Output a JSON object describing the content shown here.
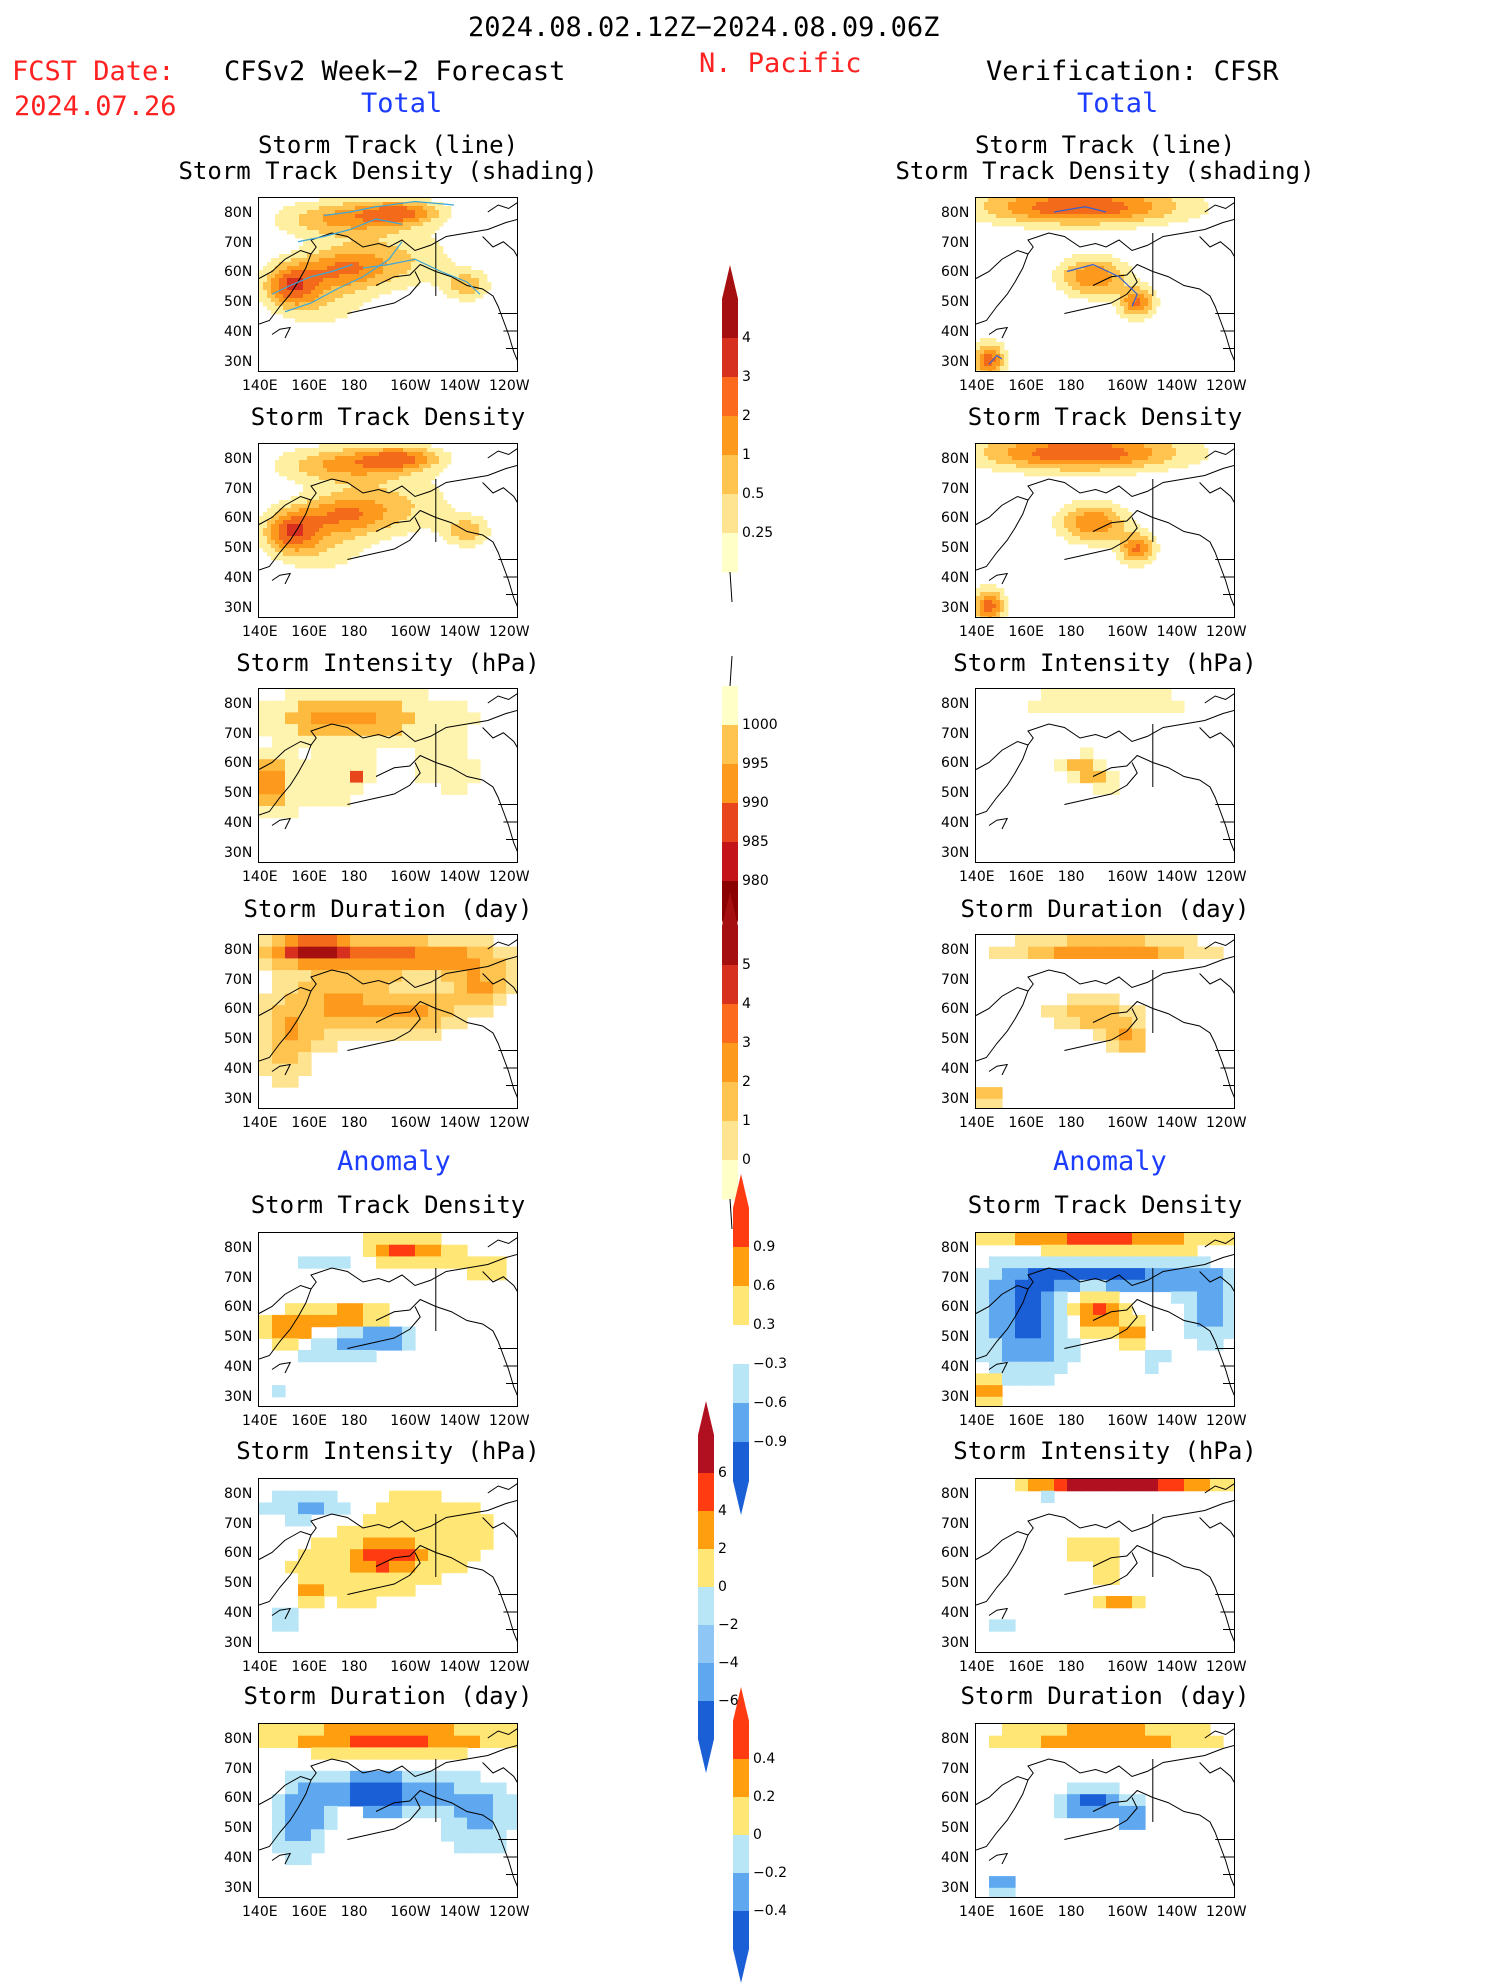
{
  "header": {
    "period": "2024.08.02.12Z−2024.08.09.06Z",
    "fcst_label": "FCST Date:",
    "fcst_date": "2024.07.26",
    "left_title": "CFSv2 Week−2 Forecast",
    "region": "N. Pacific",
    "right_title": "Verification: CFSR",
    "total_left": "Total",
    "total_right": "Total",
    "anomaly_left": "Anomaly",
    "anomaly_right": "Anomaly"
  },
  "panel_titles": {
    "track_line": "Storm Track (line)",
    "track_shading": "Storm Track Density (shading)",
    "density": "Storm Track Density",
    "intensity": "Storm Intensity (hPa)",
    "duration": "Storm Duration (day)"
  },
  "axes": {
    "lat_labels": [
      "80N",
      "70N",
      "60N",
      "50N",
      "40N",
      "30N"
    ],
    "lon_labels": [
      "140E",
      "160E",
      "180",
      "160W",
      "140W",
      "120W"
    ]
  },
  "colorbars": {
    "density": {
      "labels": [
        "4",
        "3",
        "2",
        "1",
        "0.5",
        "0.25"
      ],
      "colors": [
        "#a50f0f",
        "#d7301f",
        "#fc6a1e",
        "#fd9a1e",
        "#fec44f",
        "#fee391",
        "#ffffc8"
      ]
    },
    "intensity": {
      "labels": [
        "1000",
        "995",
        "990",
        "985",
        "980"
      ],
      "colors": [
        "#ffffc8",
        "#fec44f",
        "#fd9a1e",
        "#e8451c",
        "#c4141a",
        "#8b0000"
      ]
    },
    "duration": {
      "labels": [
        "5",
        "4",
        "3",
        "2",
        "1",
        "0"
      ],
      "colors": [
        "#a50f0f",
        "#d7301f",
        "#fc6a1e",
        "#fd9a1e",
        "#fec44f",
        "#fee391",
        "#ffffc8"
      ]
    },
    "anom_density": {
      "labels": [
        "0.9",
        "0.6",
        "0.3",
        "−0.3",
        "−0.6",
        "−0.9"
      ],
      "colors": [
        "#ff3b12",
        "#ff9f10",
        "#ffe675",
        "#ffffff",
        "#b9e6f7",
        "#5fa8f0",
        "#1a5fd6"
      ]
    },
    "anom_intensity": {
      "labels": [
        "6",
        "4",
        "2",
        "0",
        "−2",
        "−4",
        "−6"
      ],
      "colors": [
        "#b01020",
        "#ff3b12",
        "#ff9f10",
        "#ffe675",
        "#b9e6f7",
        "#8ec6f5",
        "#5fa8f0",
        "#1a5fd6"
      ]
    },
    "anom_duration": {
      "labels": [
        "0.4",
        "0.2",
        "0",
        "−0.2",
        "−0.4"
      ],
      "colors": [
        "#ff3b12",
        "#ff9f10",
        "#ffe675",
        "#b9e6f7",
        "#5fa8f0",
        "#1a5fd6"
      ]
    }
  },
  "chart_data": [
    {
      "type": "heatmap",
      "panel": "forecast-total-track",
      "title": "Storm Track (line) / Storm Track Density (shading)"
    },
    {
      "type": "heatmap",
      "panel": "verification-total-track",
      "title": "Storm Track (line) / Storm Track Density (shading)"
    },
    {
      "type": "heatmap",
      "panel": "forecast-total-density",
      "title": "Storm Track Density"
    },
    {
      "type": "heatmap",
      "panel": "verification-total-density",
      "title": "Storm Track Density"
    },
    {
      "type": "heatmap",
      "panel": "forecast-total-intensity",
      "title": "Storm Intensity (hPa)"
    },
    {
      "type": "heatmap",
      "panel": "verification-total-intensity",
      "title": "Storm Intensity (hPa)"
    },
    {
      "type": "heatmap",
      "panel": "forecast-total-duration",
      "title": "Storm Duration (day)"
    },
    {
      "type": "heatmap",
      "panel": "verification-total-duration",
      "title": "Storm Duration (day)"
    },
    {
      "type": "heatmap",
      "panel": "forecast-anomaly-density",
      "title": "Storm Track Density"
    },
    {
      "type": "heatmap",
      "panel": "verification-anomaly-density",
      "title": "Storm Track Density"
    },
    {
      "type": "heatmap",
      "panel": "forecast-anomaly-intensity",
      "title": "Storm Intensity (hPa)"
    },
    {
      "type": "heatmap",
      "panel": "verification-anomaly-intensity",
      "title": "Storm Intensity (hPa)"
    },
    {
      "type": "heatmap",
      "panel": "forecast-anomaly-duration",
      "title": "Storm Duration (day)"
    },
    {
      "type": "heatmap",
      "panel": "verification-anomaly-duration",
      "title": "Storm Duration (day)"
    }
  ]
}
